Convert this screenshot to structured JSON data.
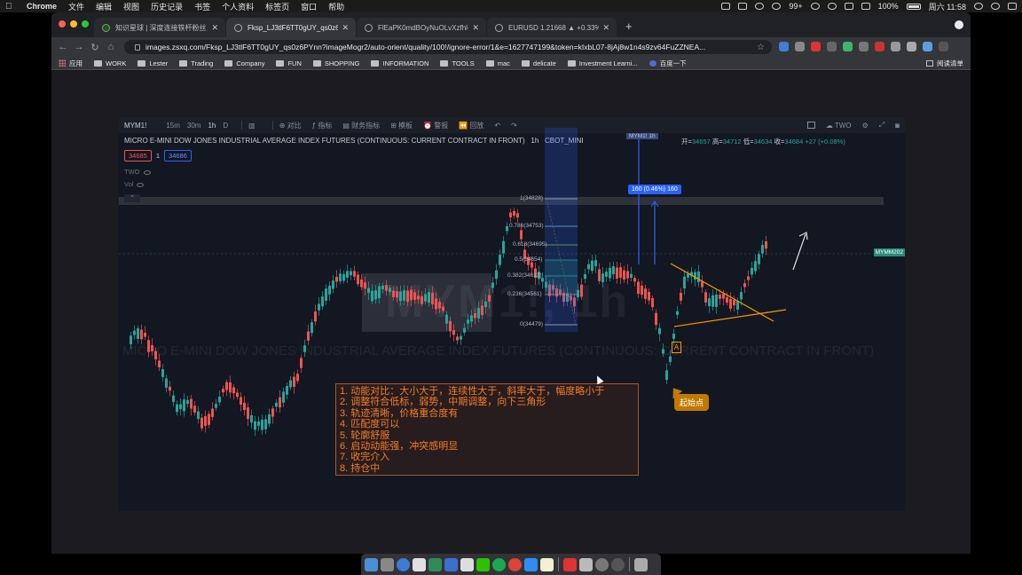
{
  "menubar": {
    "app": "Chrome",
    "items": [
      "文件",
      "编辑",
      "视图",
      "历史记录",
      "书签",
      "个人资料",
      "标签页",
      "窗口",
      "帮助"
    ],
    "badge": "99+",
    "battery": "100%",
    "clock": "周六 11:58"
  },
  "tabs": [
    {
      "title": "知识星球 | 深度连接铁杆粉丝，运营..."
    },
    {
      "title": "Fksp_LJ3tlF6TT0gUY_qs0z6PYnn"
    },
    {
      "title": "FlEaPK0mdBOyNuOLvXzfhl-TbD..."
    },
    {
      "title": "EURUSD 1.21668 ▲ +0.33% Z..."
    }
  ],
  "omnibox": {
    "url": "images.zsxq.com/Fksp_LJ3tlF6TT0gUY_qs0z6PYnn?imageMogr2/auto-orient/quality/100!/ignore-error/1&e=1627747199&token=kIxbL07-8jAj8w1n4s9zv64FuZZNEA..."
  },
  "bookmarks": {
    "items": [
      "应用",
      "WORK",
      "Lester",
      "Trading",
      "Company",
      "FUN",
      "SHOPPING",
      "INFORMATION",
      "TOOLS",
      "mac",
      "delicate",
      "Investment Learni...",
      "百度一下"
    ],
    "reading_list": "阅读清单"
  },
  "chart": {
    "symbol": "MYM1!",
    "timeframes": [
      "15m",
      "30m",
      "1h",
      "D"
    ],
    "active_timeframe": "1h",
    "tools": [
      "对比",
      "指标",
      "财务指标",
      "模板",
      "警报",
      "回放"
    ],
    "layout_name": "TWO",
    "title": "MICRO E-MINI DOW JONES INDUSTRIAL AVERAGE INDEX FUTURES (CONTINUOUS: CURRENT CONTRACT IN FRONT)",
    "interval": "1h",
    "exchange": "CBOT_MINI",
    "ohlc": {
      "open_label": "开=",
      "open": "34657",
      "high_label": "高=",
      "high": "34712",
      "low_label": "低=",
      "low": "34634",
      "close_label": "收=",
      "close": "34684",
      "change": "+27 (+0.08%)"
    },
    "bid": "34685",
    "qty": "1",
    "ask": "34686",
    "indicator_1": "TWO",
    "indicator_2": "Vol",
    "watermark": "MYM1!, 1h",
    "watermark_long": "MICRO E-MINI DOW JONES INDUSTRIAL AVERAGE INDEX FUTURES (CONTINUOUS: CURRENT CONTRACT IN FRONT)",
    "fib_levels": [
      {
        "label": "1(34828)"
      },
      {
        "label": "0.786(34753)"
      },
      {
        "label": "0.618(34695)"
      },
      {
        "label": "0.5(34654)"
      },
      {
        "label": "0.382(34612)"
      },
      {
        "label": "0.236(34561)"
      },
      {
        "label": "0(34479)"
      }
    ],
    "ruler_label": "160 (0.46%) 160",
    "top_marker": "MYM1! 1h",
    "right_tag": "MYMM202",
    "a_marker": "A",
    "callout": "起始点",
    "notes": [
      "1. 动能对比：大小大于，连续性大于，斜率大于，幅度略小于",
      "2. 调整符合低标，弱势，中期调整，向下三角形",
      "3. 轨迹清晰，价格重合度有",
      "4. 匹配度可以",
      "5. 轮廓舒服",
      "6. 启动动能强，冲突感明显",
      "7. 收完介入",
      "8. 持仓中"
    ],
    "colors": {
      "up": "#26a69a",
      "down": "#ef5350",
      "trendline": "#ff9800",
      "ruler": "#2962ff"
    }
  }
}
